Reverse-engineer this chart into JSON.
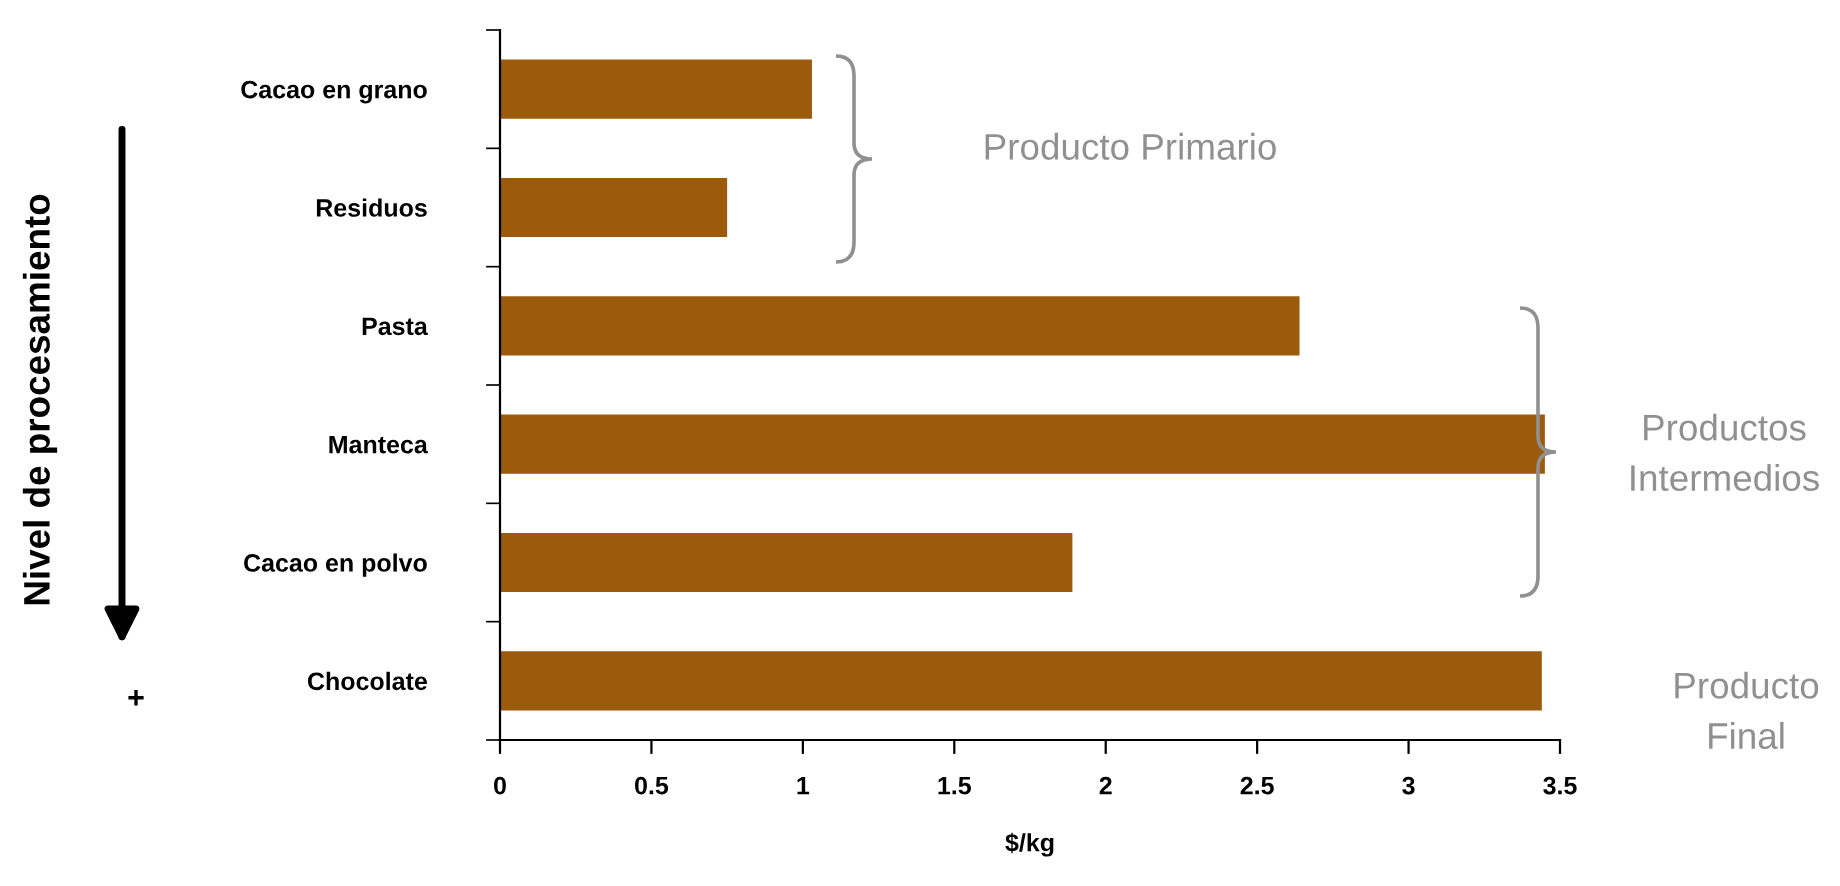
{
  "chart_data": {
    "type": "bar",
    "orientation": "horizontal",
    "categories": [
      "Cacao en grano",
      "Residuos",
      "Pasta",
      "Manteca",
      "Cacao en polvo",
      "Chocolate"
    ],
    "values": [
      1.03,
      0.75,
      2.64,
      3.45,
      1.89,
      3.44
    ],
    "color": "#9c5a0c",
    "xlabel": "$/kg",
    "xlim": [
      0,
      3.5
    ],
    "xticks": [
      0,
      0.5,
      1,
      1.5,
      2,
      2.5,
      3,
      3.5
    ],
    "annotations": [
      "Producto Primario",
      "Productos\nIntermedios",
      "Producto\nFinal",
      "+",
      "Nivel de procesamiento"
    ],
    "grid": false,
    "legend": false
  }
}
